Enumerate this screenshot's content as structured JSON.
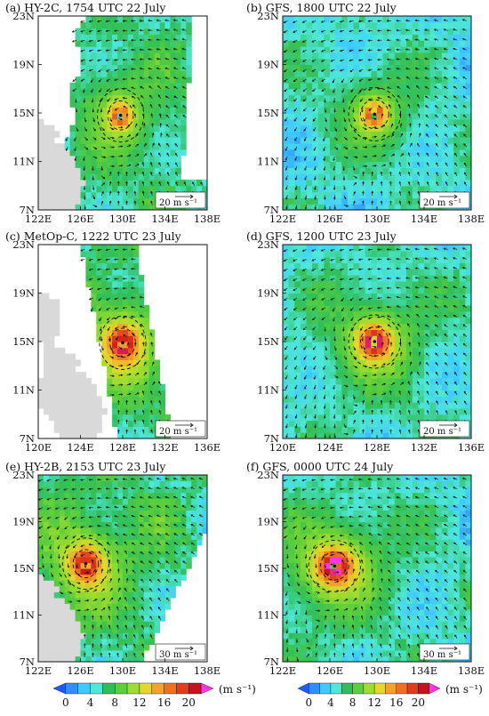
{
  "chart_data": [
    {
      "type": "heatmap",
      "panel": "a",
      "title": "(a) HY-2C, 1754 UTC 22 July",
      "x_ticks": [
        "122E",
        "126E",
        "130E",
        "134E",
        "138E"
      ],
      "y_ticks": [
        "7N",
        "11N",
        "15N",
        "19N",
        "23N"
      ],
      "xlim": [
        122,
        138
      ],
      "ylim": [
        7,
        23
      ],
      "center": [
        129.8,
        14.8
      ],
      "vmax": 15,
      "size": 2.4,
      "swath": "west_edge",
      "land": true,
      "ref_label": "20 m s⁻¹"
    },
    {
      "type": "heatmap",
      "panel": "b",
      "title": "(b) GFS, 1800 UTC 22 July",
      "x_ticks": [
        "122E",
        "126E",
        "130E",
        "134E",
        "138E"
      ],
      "y_ticks": [
        "7N",
        "11N",
        "15N",
        "19N",
        "23N"
      ],
      "xlim": [
        122,
        138
      ],
      "ylim": [
        7,
        23
      ],
      "center": [
        129.8,
        14.9
      ],
      "vmax": 17,
      "size": 2.6,
      "swath": "full",
      "land": false,
      "ref_label": "20 m s⁻¹"
    },
    {
      "type": "heatmap",
      "panel": "c",
      "title": "(c) MetOp-C, 1222 UTC 23 July",
      "x_ticks": [
        "120E",
        "124E",
        "128E",
        "132E",
        "136E"
      ],
      "y_ticks": [
        "7N",
        "11N",
        "15N",
        "19N",
        "23N"
      ],
      "xlim": [
        120,
        136
      ],
      "ylim": [
        7,
        23
      ],
      "center": [
        128.0,
        14.9
      ],
      "vmax": 22,
      "size": 2.3,
      "swath": "strip",
      "land": true,
      "ref_label": "20 m s⁻¹"
    },
    {
      "type": "heatmap",
      "panel": "d",
      "title": "(d) GFS, 1200 UTC 23 July",
      "x_ticks": [
        "120E",
        "124E",
        "128E",
        "132E",
        "136E"
      ],
      "y_ticks": [
        "7N",
        "11N",
        "15N",
        "19N",
        "23N"
      ],
      "xlim": [
        120,
        136
      ],
      "ylim": [
        7,
        23
      ],
      "center": [
        127.8,
        15.0
      ],
      "vmax": 22,
      "size": 2.8,
      "swath": "full",
      "land": false,
      "ref_label": "20 m s⁻¹"
    },
    {
      "type": "heatmap",
      "panel": "e",
      "title": "(e) HY-2B, 2153 UTC 23 July",
      "x_ticks": [
        "122E",
        "126E",
        "130E",
        "134E",
        "138E"
      ],
      "y_ticks": [
        "7N",
        "11N",
        "15N",
        "19N",
        "23N"
      ],
      "xlim": [
        122,
        138
      ],
      "ylim": [
        7,
        23
      ],
      "center": [
        126.5,
        15.4
      ],
      "vmax": 21,
      "size": 2.5,
      "swath": "east_cut",
      "land": true,
      "ref_label": "30 m s⁻¹"
    },
    {
      "type": "heatmap",
      "panel": "f",
      "title": "(f) GFS, 0000 UTC 24 July",
      "x_ticks": [
        "122E",
        "126E",
        "130E",
        "134E",
        "138E"
      ],
      "y_ticks": [
        "7N",
        "11N",
        "15N",
        "19N",
        "23N"
      ],
      "xlim": [
        122,
        138
      ],
      "ylim": [
        7,
        23
      ],
      "center": [
        126.4,
        15.2
      ],
      "vmax": 24,
      "size": 3.2,
      "swath": "full",
      "land": false,
      "ref_label": "30 m s⁻¹"
    }
  ],
  "colorbar": {
    "ticks": [
      "0",
      "4",
      "8",
      "12",
      "16",
      "20"
    ],
    "range": [
      0,
      22
    ],
    "unit": "(m s⁻¹)",
    "colors": [
      "#1e5bff",
      "#2f8fff",
      "#3fc9ff",
      "#4ee8d8",
      "#2fbf59",
      "#5ccf3a",
      "#9ddd2e",
      "#e6d82a",
      "#f6a12a",
      "#f07020",
      "#e23c1c",
      "#c8101e",
      "#ff33ee"
    ]
  }
}
